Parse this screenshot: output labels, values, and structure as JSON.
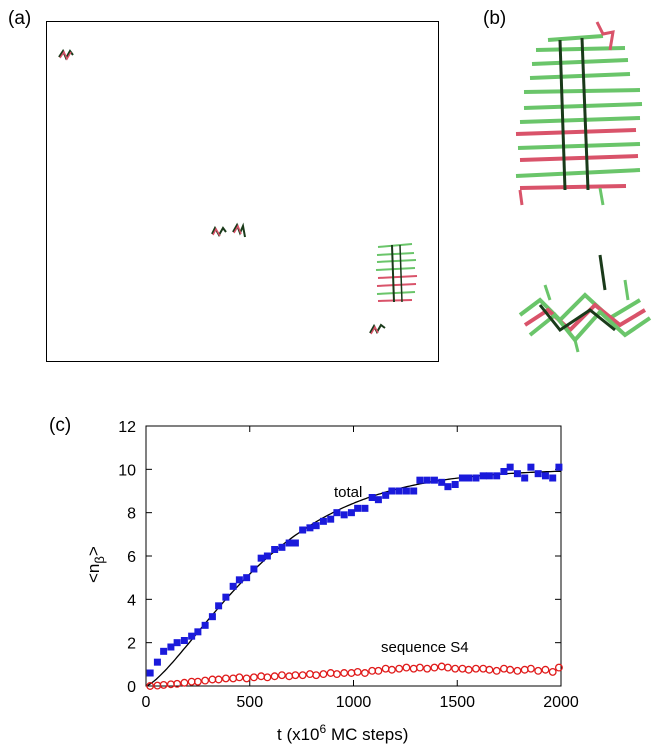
{
  "panels": {
    "a": "(a)",
    "b": "(b)",
    "c": "(c)"
  },
  "chart_data": {
    "type": "scatter",
    "title": "",
    "xlabel_main": "t (x10",
    "xlabel_sup": "6",
    "xlabel_tail": " MC steps)",
    "ylabel_main": "<n",
    "ylabel_sub": "β",
    "ylabel_tail": ">",
    "xlim": [
      0,
      2000
    ],
    "ylim": [
      0,
      12
    ],
    "xticks": [
      0,
      500,
      1000,
      1500,
      2000
    ],
    "yticks": [
      0,
      2,
      4,
      6,
      8,
      10,
      12
    ],
    "grid": false,
    "legend": "none",
    "series": [
      {
        "name": "total",
        "marker": "filled-square",
        "color": "#1a1adb",
        "x": [
          20,
          55,
          85,
          120,
          150,
          185,
          220,
          250,
          285,
          320,
          350,
          385,
          420,
          450,
          485,
          520,
          555,
          585,
          620,
          655,
          690,
          720,
          755,
          790,
          820,
          855,
          890,
          920,
          955,
          990,
          1020,
          1055,
          1090,
          1120,
          1155,
          1185,
          1220,
          1255,
          1290,
          1320,
          1355,
          1390,
          1425,
          1455,
          1490,
          1525,
          1555,
          1590,
          1625,
          1655,
          1690,
          1725,
          1755,
          1790,
          1825,
          1855,
          1890,
          1925,
          1960,
          1990
        ],
        "y": [
          0.6,
          1.1,
          1.6,
          1.8,
          2.0,
          2.1,
          2.3,
          2.5,
          2.8,
          3.2,
          3.7,
          4.1,
          4.6,
          4.9,
          5.0,
          5.4,
          5.9,
          6.0,
          6.3,
          6.4,
          6.6,
          6.6,
          7.2,
          7.3,
          7.4,
          7.6,
          7.7,
          8.0,
          7.9,
          8.0,
          8.2,
          8.2,
          8.7,
          8.6,
          8.8,
          9.0,
          9.0,
          9.0,
          9.0,
          9.5,
          9.5,
          9.5,
          9.4,
          9.2,
          9.3,
          9.6,
          9.6,
          9.6,
          9.7,
          9.7,
          9.7,
          9.9,
          10.1,
          9.8,
          9.6,
          10.1,
          9.8,
          9.7,
          9.6,
          10.1
        ]
      },
      {
        "name": "sequence S4",
        "marker": "open-circle",
        "color": "#e01a1a",
        "x": [
          20,
          55,
          85,
          120,
          150,
          185,
          220,
          250,
          285,
          320,
          350,
          385,
          420,
          450,
          485,
          520,
          555,
          585,
          620,
          655,
          690,
          720,
          755,
          790,
          820,
          855,
          890,
          920,
          955,
          990,
          1020,
          1055,
          1090,
          1120,
          1155,
          1185,
          1220,
          1255,
          1290,
          1320,
          1355,
          1390,
          1425,
          1455,
          1490,
          1525,
          1555,
          1590,
          1625,
          1655,
          1690,
          1725,
          1755,
          1790,
          1825,
          1855,
          1890,
          1925,
          1960,
          1990
        ],
        "y": [
          0.0,
          0.02,
          0.05,
          0.08,
          0.1,
          0.15,
          0.2,
          0.2,
          0.25,
          0.3,
          0.3,
          0.35,
          0.35,
          0.4,
          0.35,
          0.4,
          0.45,
          0.4,
          0.45,
          0.5,
          0.45,
          0.5,
          0.5,
          0.55,
          0.5,
          0.55,
          0.6,
          0.55,
          0.6,
          0.6,
          0.65,
          0.6,
          0.7,
          0.7,
          0.8,
          0.75,
          0.8,
          0.85,
          0.8,
          0.85,
          0.8,
          0.85,
          0.9,
          0.85,
          0.8,
          0.8,
          0.75,
          0.8,
          0.8,
          0.75,
          0.7,
          0.8,
          0.75,
          0.7,
          0.75,
          0.8,
          0.7,
          0.75,
          0.65,
          0.85
        ]
      }
    ],
    "fit_curves": [
      {
        "for": "total",
        "amplitude": 10.0,
        "rate": 0.00158,
        "shape": 1.35
      }
    ],
    "annotations": {
      "total": "total",
      "s4": "sequence S4"
    }
  },
  "colors": {
    "protein_green": "#6ac56a",
    "protein_red": "#d9536a",
    "protein_dark": "#1a3a1a"
  }
}
